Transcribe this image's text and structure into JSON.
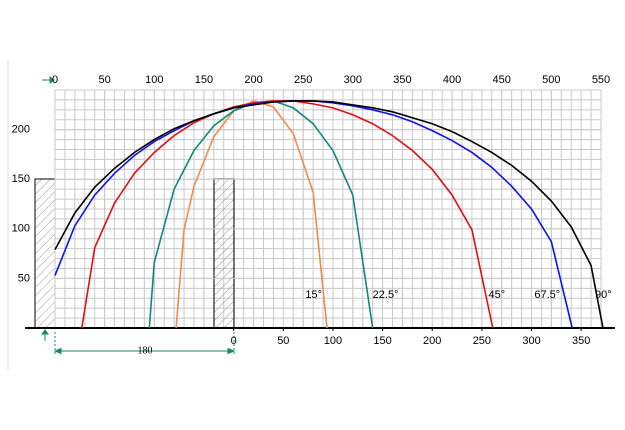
{
  "chart_data": {
    "type": "line",
    "xlim": [
      -180,
      370
    ],
    "x2lim": [
      0,
      550
    ],
    "ylim": [
      0,
      240
    ],
    "xticks": [
      0,
      50,
      100,
      150,
      200,
      250,
      300,
      350
    ],
    "x2ticks": [
      0,
      50,
      100,
      150,
      200,
      250,
      300,
      350,
      400,
      450,
      500,
      550
    ],
    "yticks": [
      50,
      100,
      150,
      200
    ],
    "grid": true,
    "dimension": 180,
    "series": [
      {
        "name": "15°",
        "color": "#f28a4a",
        "x": [
          -58,
          -50,
          -40,
          -20,
          0,
          20,
          40,
          60,
          80,
          94
        ],
        "values": [
          0,
          99,
          143,
          193,
          219,
          229,
          223,
          196,
          137,
          0
        ]
      },
      {
        "name": "22.5°",
        "color": "#13877a",
        "x": [
          -85,
          -80,
          -60,
          -40,
          -20,
          0,
          20,
          40,
          60,
          80,
          100,
          120,
          140
        ],
        "values": [
          0,
          66,
          140,
          179,
          204,
          219,
          227,
          229,
          222,
          206,
          179,
          134,
          0
        ]
      },
      {
        "name": "45°",
        "color": "#e01010",
        "x": [
          -153,
          -140,
          -120,
          -100,
          -80,
          -60,
          -40,
          -20,
          0,
          20,
          40,
          60,
          80,
          100,
          120,
          140,
          160,
          180,
          200,
          220,
          240,
          261
        ],
        "values": [
          0,
          81,
          126,
          156,
          177,
          194,
          207,
          216,
          223,
          227,
          229,
          229,
          226,
          222,
          215,
          206,
          194,
          179,
          160,
          134,
          99,
          0
        ]
      },
      {
        "name": "67.5°",
        "color": "#1010f0",
        "x": [
          -180,
          -160,
          -140,
          -120,
          -100,
          -80,
          -60,
          -40,
          -20,
          0,
          20,
          40,
          60,
          80,
          100,
          120,
          140,
          160,
          180,
          200,
          220,
          240,
          260,
          280,
          300,
          320,
          341
        ],
        "values": [
          53,
          103,
          134,
          156,
          174,
          188,
          199,
          209,
          216,
          222,
          226,
          228,
          229,
          229,
          227,
          224,
          220,
          215,
          208,
          199,
          189,
          177,
          162,
          143,
          120,
          87,
          0
        ]
      },
      {
        "name": "90°",
        "color": "#000000",
        "x": [
          -180,
          -160,
          -140,
          -120,
          -100,
          -80,
          -60,
          -40,
          -20,
          0,
          20,
          40,
          60,
          80,
          100,
          120,
          140,
          160,
          180,
          200,
          220,
          240,
          260,
          280,
          300,
          320,
          340,
          360,
          372
        ],
        "values": [
          79,
          116,
          142,
          161,
          177,
          190,
          201,
          209,
          216,
          222,
          225,
          228,
          229,
          229,
          228,
          225,
          222,
          218,
          212,
          206,
          198,
          188,
          177,
          164,
          148,
          128,
          102,
          63,
          0
        ]
      }
    ]
  }
}
